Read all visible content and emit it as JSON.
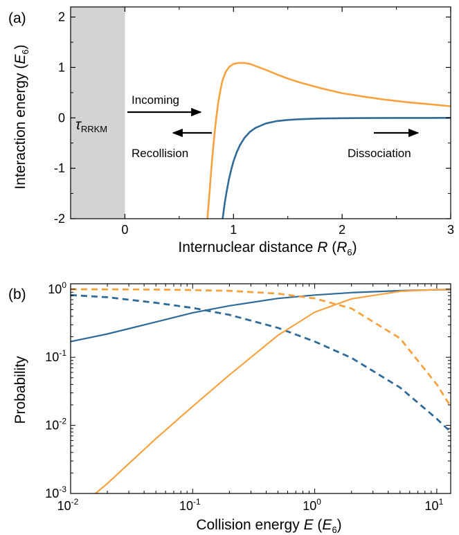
{
  "colors": {
    "orange": "#f7a23f",
    "blue": "#2f6a98",
    "shade": "#d3d3d3",
    "black": "#000000"
  },
  "chart_data": [
    {
      "type": "line",
      "panel_label": "(a)",
      "xlabel": {
        "main": "Internuclear distance ",
        "var": "R",
        "pre": " (",
        "unit": "R",
        "sub": "6",
        "post": ")"
      },
      "ylabel": {
        "main": "Interaction energy (",
        "var": "E",
        "sub": "6",
        "post": ")"
      },
      "xlim": [
        -0.5,
        3.0
      ],
      "ylim": [
        -2,
        2.2
      ],
      "xticks": [
        0,
        1,
        2,
        3
      ],
      "xtick_labels": [
        "0",
        "1",
        "2",
        "3"
      ],
      "yticks": [
        -2,
        -1,
        0,
        1,
        2
      ],
      "ytick_labels": [
        "-2",
        "-1",
        "0",
        "1",
        "2"
      ],
      "shaded_region": {
        "x": [
          -0.5,
          0
        ],
        "label": "τ",
        "label_sub": "RRKM"
      },
      "annotations": {
        "incoming": "Incoming",
        "recollision": "Recollision",
        "dissociation": "Dissociation"
      },
      "series": [
        {
          "color": "orange",
          "x": [
            0.76,
            0.78,
            0.8,
            0.82,
            0.84,
            0.86,
            0.88,
            0.9,
            0.93,
            0.96,
            1.0,
            1.05,
            1.1,
            1.15,
            1.2,
            1.3,
            1.4,
            1.5,
            1.6,
            1.8,
            2.0,
            2.2,
            2.4,
            2.6,
            2.8,
            3.0
          ],
          "y": [
            -2.0,
            -1.45,
            -0.9,
            -0.42,
            -0.02,
            0.31,
            0.56,
            0.75,
            0.92,
            1.01,
            1.07,
            1.09,
            1.09,
            1.07,
            1.03,
            0.95,
            0.86,
            0.78,
            0.71,
            0.59,
            0.49,
            0.42,
            0.36,
            0.31,
            0.27,
            0.23
          ]
        },
        {
          "color": "blue",
          "x": [
            0.9,
            0.92,
            0.94,
            0.96,
            0.98,
            1.0,
            1.03,
            1.06,
            1.1,
            1.15,
            1.2,
            1.3,
            1.4,
            1.5,
            1.6,
            1.8,
            2.0,
            2.2,
            2.5,
            2.8,
            3.0
          ],
          "y": [
            -2.0,
            -1.68,
            -1.42,
            -1.2,
            -1.02,
            -0.86,
            -0.68,
            -0.54,
            -0.4,
            -0.28,
            -0.2,
            -0.11,
            -0.064,
            -0.041,
            -0.027,
            -0.012,
            -0.0065,
            -0.0037,
            -0.0018,
            -0.0009,
            -0.0006
          ]
        }
      ]
    },
    {
      "type": "line",
      "panel_label": "(b)",
      "xlabel": {
        "main": "Collision energy ",
        "var": "E",
        "pre": " (",
        "unit": "E",
        "sub": "6",
        "post": ")"
      },
      "ylabel": {
        "main": "Probability"
      },
      "xscale": "log",
      "yscale": "log",
      "xlim": [
        0.01,
        13
      ],
      "ylim": [
        0.001,
        1.2
      ],
      "xticks": [
        0.01,
        0.1,
        1,
        10
      ],
      "xtick_labels": [
        [
          "10",
          "-2"
        ],
        [
          "10",
          "-1"
        ],
        [
          "10",
          "0"
        ],
        [
          "10",
          "1"
        ]
      ],
      "yticks": [
        0.001,
        0.01,
        0.1,
        1
      ],
      "ytick_labels": [
        [
          "10",
          "-3"
        ],
        [
          "10",
          "-2"
        ],
        [
          "10",
          "-1"
        ],
        [
          "10",
          "0"
        ]
      ],
      "series": [
        {
          "color": "blue",
          "style": "solid",
          "x": [
            0.01,
            0.02,
            0.05,
            0.1,
            0.2,
            0.5,
            1,
            2,
            5,
            10,
            13
          ],
          "y": [
            0.17,
            0.22,
            0.33,
            0.45,
            0.57,
            0.73,
            0.82,
            0.89,
            0.95,
            0.98,
            0.985
          ]
        },
        {
          "color": "blue",
          "style": "dashed",
          "x": [
            0.01,
            0.02,
            0.05,
            0.1,
            0.2,
            0.5,
            1,
            2,
            5,
            10,
            13
          ],
          "y": [
            0.82,
            0.76,
            0.63,
            0.53,
            0.42,
            0.27,
            0.17,
            0.098,
            0.036,
            0.0125,
            0.008
          ]
        },
        {
          "color": "orange",
          "style": "solid",
          "x": [
            0.016,
            0.02,
            0.05,
            0.1,
            0.2,
            0.5,
            1,
            2,
            5,
            10,
            13
          ],
          "y": [
            0.001,
            0.0014,
            0.0064,
            0.019,
            0.055,
            0.21,
            0.46,
            0.72,
            0.93,
            0.985,
            0.99
          ]
        },
        {
          "color": "orange",
          "style": "dashed",
          "x": [
            0.01,
            0.02,
            0.05,
            0.1,
            0.2,
            0.5,
            1,
            2,
            5,
            10,
            13
          ],
          "y": [
            0.995,
            0.993,
            0.985,
            0.97,
            0.945,
            0.86,
            0.73,
            0.52,
            0.19,
            0.04,
            0.019
          ]
        }
      ]
    }
  ]
}
